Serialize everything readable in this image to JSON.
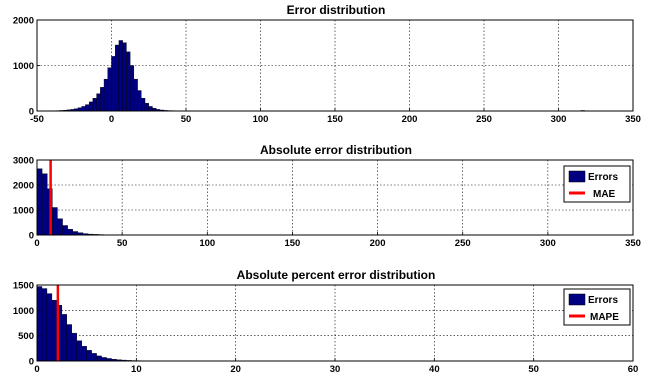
{
  "chart_data": [
    {
      "type": "bar",
      "title": "Error distribution",
      "xlabel": "",
      "ylabel": "",
      "xlim": [
        -50,
        350
      ],
      "ylim": [
        0,
        2000
      ],
      "xticks": [
        -50,
        0,
        50,
        100,
        150,
        200,
        250,
        300,
        350
      ],
      "yticks": [
        0,
        1000,
        2000
      ],
      "grid": true,
      "bin_width": 2.5,
      "bins": [
        [
          -40,
          5
        ],
        [
          -37.5,
          8
        ],
        [
          -35,
          12
        ],
        [
          -32.5,
          18
        ],
        [
          -30,
          25
        ],
        [
          -27.5,
          35
        ],
        [
          -25,
          50
        ],
        [
          -22.5,
          70
        ],
        [
          -20,
          100
        ],
        [
          -17.5,
          140
        ],
        [
          -15,
          200
        ],
        [
          -12.5,
          280
        ],
        [
          -10,
          380
        ],
        [
          -7.5,
          520
        ],
        [
          -5,
          700
        ],
        [
          -2.5,
          950
        ],
        [
          0,
          1200
        ],
        [
          2.5,
          1450
        ],
        [
          5,
          1550
        ],
        [
          7.5,
          1500
        ],
        [
          10,
          1300
        ],
        [
          12.5,
          1000
        ],
        [
          15,
          700
        ],
        [
          17.5,
          450
        ],
        [
          20,
          280
        ],
        [
          22.5,
          170
        ],
        [
          25,
          100
        ],
        [
          27.5,
          60
        ],
        [
          30,
          35
        ],
        [
          32.5,
          22
        ],
        [
          35,
          14
        ],
        [
          37.5,
          10
        ],
        [
          40,
          8
        ],
        [
          42.5,
          6
        ],
        [
          45,
          5
        ],
        [
          47.5,
          4
        ],
        [
          50,
          4
        ],
        [
          55,
          3
        ],
        [
          60,
          3
        ],
        [
          65,
          2
        ],
        [
          70,
          2
        ],
        [
          75,
          2
        ],
        [
          80,
          2
        ],
        [
          90,
          1
        ],
        [
          315,
          12
        ]
      ],
      "series": [
        {
          "name": "",
          "color": "#000080"
        }
      ]
    },
    {
      "type": "bar",
      "title": "Absolute error distribution",
      "xlabel": "",
      "ylabel": "",
      "xlim": [
        0,
        350
      ],
      "ylim": [
        0,
        3000
      ],
      "xticks": [
        0,
        50,
        100,
        150,
        200,
        250,
        300,
        350
      ],
      "yticks": [
        0,
        1000,
        2000,
        3000
      ],
      "grid": true,
      "bin_width": 3,
      "bins": [
        [
          0,
          2650
        ],
        [
          3,
          2450
        ],
        [
          6,
          1850
        ],
        [
          9,
          1100
        ],
        [
          12,
          650
        ],
        [
          15,
          380
        ],
        [
          18,
          230
        ],
        [
          21,
          140
        ],
        [
          24,
          90
        ],
        [
          27,
          55
        ],
        [
          30,
          35
        ],
        [
          33,
          25
        ],
        [
          36,
          18
        ],
        [
          39,
          12
        ],
        [
          42,
          10
        ],
        [
          45,
          8
        ],
        [
          48,
          6
        ],
        [
          51,
          5
        ],
        [
          54,
          4
        ],
        [
          57,
          4
        ],
        [
          60,
          3
        ],
        [
          66,
          3
        ],
        [
          72,
          2
        ],
        [
          78,
          2
        ],
        [
          84,
          1
        ],
        [
          315,
          12
        ]
      ],
      "marker": {
        "name": "MAE",
        "x": 8,
        "color": "#ff0000"
      },
      "series": [
        {
          "name": "Errors",
          "color": "#000080"
        }
      ],
      "legend": {
        "position": "top-right",
        "entries": [
          "Errors",
          "MAE"
        ]
      }
    },
    {
      "type": "bar",
      "title": "Absolute percent error distribution",
      "xlabel": "",
      "ylabel": "",
      "xlim": [
        0,
        60
      ],
      "ylim": [
        0,
        1500
      ],
      "xticks": [
        0,
        10,
        20,
        30,
        40,
        50,
        60
      ],
      "yticks": [
        0,
        500,
        1000,
        1500
      ],
      "grid": true,
      "bin_width": 0.5,
      "bins": [
        [
          0,
          1470
        ],
        [
          0.5,
          1430
        ],
        [
          1,
          1330
        ],
        [
          1.5,
          1200
        ],
        [
          2,
          1100
        ],
        [
          2.5,
          920
        ],
        [
          3,
          720
        ],
        [
          3.5,
          550
        ],
        [
          4,
          400
        ],
        [
          4.5,
          290
        ],
        [
          5,
          210
        ],
        [
          5.5,
          150
        ],
        [
          6,
          100
        ],
        [
          6.5,
          70
        ],
        [
          7,
          50
        ],
        [
          7.5,
          35
        ],
        [
          8,
          25
        ],
        [
          8.5,
          18
        ],
        [
          9,
          12
        ],
        [
          9.5,
          9
        ],
        [
          10,
          7
        ],
        [
          10.5,
          6
        ],
        [
          11,
          5
        ],
        [
          11.5,
          4
        ],
        [
          12,
          4
        ],
        [
          12.5,
          3
        ],
        [
          13,
          3
        ],
        [
          14,
          2
        ],
        [
          15,
          2
        ],
        [
          16,
          1
        ],
        [
          50,
          5
        ]
      ],
      "marker": {
        "name": "MAPE",
        "x": 2.1,
        "color": "#ff0000"
      },
      "series": [
        {
          "name": "Errors",
          "color": "#000080"
        }
      ],
      "legend": {
        "position": "top-right",
        "entries": [
          "Errors",
          "MAPE"
        ]
      }
    }
  ]
}
